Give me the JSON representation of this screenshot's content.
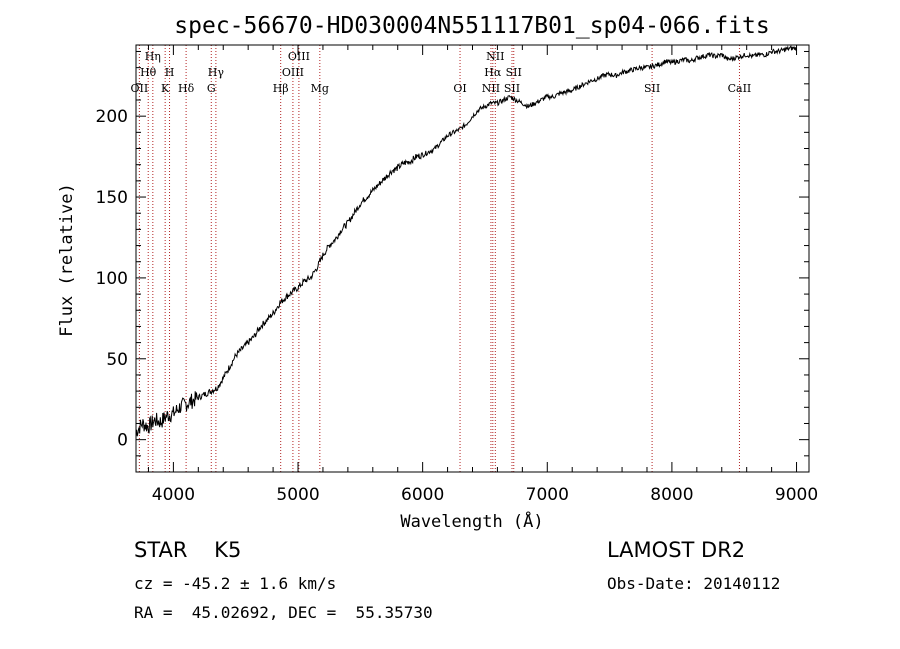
{
  "chart_data": {
    "type": "line",
    "title": "spec-56670-HD030004N551117B01_sp04-066.fits",
    "xlabel": "Wavelength (Å)",
    "ylabel": "Flux (relative)",
    "xlim": [
      3700,
      9100
    ],
    "ylim": [
      -20,
      244
    ],
    "x_ticks": [
      4000,
      5000,
      6000,
      7000,
      8000,
      9000
    ],
    "y_ticks": [
      0,
      50,
      100,
      150,
      200
    ],
    "x_tick_labels": [
      "4000",
      "5000",
      "6000",
      "7000",
      "8000",
      "9000"
    ],
    "y_tick_labels": [
      "0",
      "50",
      "100",
      "150",
      "200"
    ],
    "grid": false,
    "series": [
      {
        "x": [
          3700,
          3750,
          3800,
          3850,
          3900,
          3950,
          4000,
          4050,
          4100,
          4150,
          4200,
          4250,
          4300,
          4350,
          4400,
          4450,
          4500,
          4550,
          4600,
          4650,
          4700,
          4750,
          4800,
          4850,
          4900,
          4950,
          5000,
          5050,
          5100,
          5150,
          5200,
          5250,
          5300,
          5350,
          5400,
          5450,
          5500,
          5550,
          5600,
          5650,
          5700,
          5750,
          5800,
          5850,
          5900,
          5950,
          6000,
          6050,
          6100,
          6150,
          6200,
          6250,
          6300,
          6350,
          6400,
          6450,
          6500,
          6550,
          6600,
          6650,
          6700,
          6750,
          6800,
          6850,
          6900,
          6950,
          7000,
          7050,
          7100,
          7150,
          7200,
          7250,
          7300,
          7350,
          7400,
          7450,
          7500,
          7550,
          7600,
          7650,
          7700,
          7750,
          7800,
          7850,
          7900,
          7950,
          8000,
          8050,
          8100,
          8150,
          8200,
          8250,
          8300,
          8350,
          8400,
          8450,
          8500,
          8550,
          8600,
          8650,
          8700,
          8750,
          8800,
          8850,
          8900,
          8950,
          9000
        ],
        "y": [
          5,
          10,
          8,
          12,
          11,
          15,
          16,
          20,
          22,
          24,
          26,
          28,
          30,
          32,
          38,
          45,
          52,
          56,
          60,
          64,
          70,
          74,
          78,
          84,
          88,
          91,
          94,
          98,
          100,
          106,
          114,
          120,
          124,
          130,
          134,
          140,
          146,
          150,
          154,
          158,
          162,
          166,
          168,
          171,
          172,
          175,
          176,
          178,
          180,
          184,
          188,
          190,
          192,
          195,
          200,
          204,
          206,
          208,
          208,
          210,
          212,
          210,
          208,
          206,
          208,
          210,
          212,
          212,
          214,
          215,
          216,
          218,
          220,
          222,
          223,
          225,
          226,
          225,
          227,
          228,
          229,
          230,
          230,
          231,
          232,
          234,
          233,
          234,
          235,
          234,
          236,
          237,
          238,
          237,
          238,
          235,
          236,
          237,
          238,
          237,
          238,
          238,
          240,
          240,
          241,
          242,
          242
        ]
      }
    ],
    "line_colors": {
      "spectrum": "#000000",
      "line_markers": "#b22222"
    },
    "spectral_lines": [
      {
        "label": "OII",
        "x": 3727
      },
      {
        "label": "Hθ",
        "x": 3798
      },
      {
        "label": "Hη",
        "x": 3835
      },
      {
        "label": "K",
        "x": 3934
      },
      {
        "label": "H",
        "x": 3969
      },
      {
        "label": "Hδ",
        "x": 4102
      },
      {
        "label": "G",
        "x": 4304
      },
      {
        "label": "Hγ",
        "x": 4341
      },
      {
        "label": "Hβ",
        "x": 4861
      },
      {
        "label": "OIII",
        "x": 4959
      },
      {
        "label": "OIII",
        "x": 5007
      },
      {
        "label": "Mg",
        "x": 5175
      },
      {
        "label": "OI",
        "x": 6300
      },
      {
        "label": "NII",
        "x": 6548
      },
      {
        "label": "Hα",
        "x": 6563
      },
      {
        "label": "NII",
        "x": 6583
      },
      {
        "label": "SII",
        "x": 6717
      },
      {
        "label": "SII",
        "x": 6731
      },
      {
        "label": "SII",
        "x": 7841
      },
      {
        "label": "CaII",
        "x": 8542
      }
    ]
  },
  "info": {
    "class_text": "STAR    K5",
    "cz_text": "cz = -45.2 ± 1.6 km/s",
    "coords_text": "RA =  45.02692, DEC =  55.35730",
    "survey": "LAMOST DR2",
    "obs_date": "Obs-Date: 20140112"
  }
}
